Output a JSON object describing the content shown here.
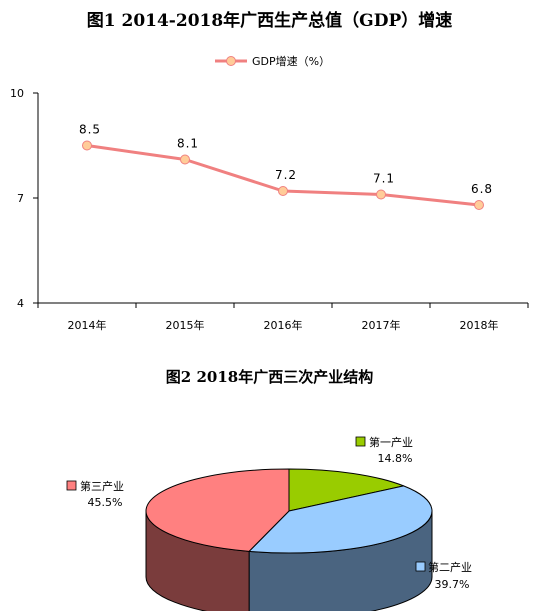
{
  "chart_data": [
    {
      "type": "line",
      "title": "图1  2014-2018年广西生产总值（GDP）增速",
      "categories": [
        "2014年",
        "2015年",
        "2016年",
        "2017年",
        "2018年"
      ],
      "series": [
        {
          "name": "GDP增速（%）",
          "values": [
            8.5,
            8.1,
            7.2,
            7.1,
            6.8
          ],
          "color": "#f08080"
        }
      ],
      "data_labels": [
        "8.5",
        "8.1",
        "7.2",
        "7.1",
        "6.8"
      ],
      "ylim": [
        4,
        10
      ],
      "yticks": [
        4,
        7,
        10
      ],
      "ytick_labels": [
        "4",
        "7",
        "10"
      ],
      "grid": false,
      "legend": "top"
    },
    {
      "type": "pie",
      "style": "3d",
      "title": "图2  2018年广西三次产业结构",
      "labels": [
        "第一产业",
        "第二产业",
        "第三产业"
      ],
      "values": [
        14.8,
        39.7,
        45.5
      ],
      "value_labels": [
        "14.8%",
        "39.7%",
        "45.5%"
      ],
      "colors": [
        "#99cc00",
        "#99ccff",
        "#ff8080"
      ],
      "side_colors": [
        "#5b7a00",
        "#4a6480",
        "#7a3c3c"
      ]
    }
  ]
}
